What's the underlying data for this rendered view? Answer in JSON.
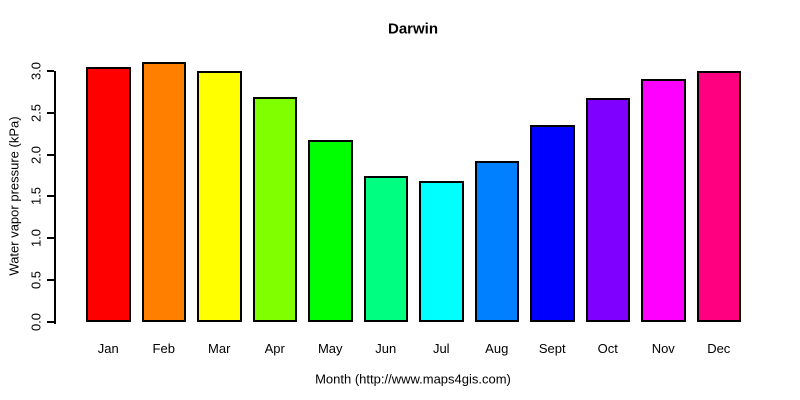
{
  "chart_data": {
    "type": "bar",
    "title": "Darwin",
    "xlabel": "Month (http://www.maps4gis.com)",
    "ylabel": "Water vapor pressure (kPa)",
    "categories": [
      "Jan",
      "Feb",
      "Mar",
      "Apr",
      "May",
      "Jun",
      "Jul",
      "Aug",
      "Sept",
      "Oct",
      "Nov",
      "Dec"
    ],
    "values": [
      3.05,
      3.11,
      3.0,
      2.69,
      2.17,
      1.74,
      1.69,
      1.92,
      2.36,
      2.68,
      2.9,
      3.0
    ],
    "bar_colors": [
      "#FF0000",
      "#FF8000",
      "#FFFF00",
      "#80FF00",
      "#00FF00",
      "#00FF80",
      "#00FFFF",
      "#0080FF",
      "#0000FF",
      "#8000FF",
      "#FF00FF",
      "#FF0080"
    ],
    "bar_border_color": "#000000",
    "axis_color": "#000000",
    "text_color": "#000000",
    "background_color": "#FFFFFF",
    "ylim": [
      0,
      3.2
    ],
    "yticks": [
      0.0,
      0.5,
      1.0,
      1.5,
      2.0,
      2.5,
      3.0
    ],
    "ytick_labels": [
      "0.0",
      "0.5",
      "1.0",
      "1.5",
      "2.0",
      "2.5",
      "3.0"
    ],
    "grid": false,
    "legend": false
  }
}
